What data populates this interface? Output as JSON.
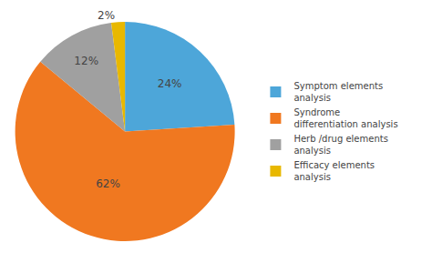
{
  "chart_data": {
    "type": "pie",
    "categories": [
      "Symptom elements\nanalysis",
      "Syndrome\ndifferentiation analysis",
      "Herb /drug elements\nanalysis",
      "Efficacy elements\nanalysis"
    ],
    "values": [
      24,
      62,
      12,
      2
    ],
    "value_labels": [
      "24%",
      "62%",
      "12%",
      "2%"
    ],
    "colors": [
      "#4da6d9",
      "#f07820",
      "#a0a0a0",
      "#e8b800"
    ],
    "data_labels": true,
    "legend": "right"
  }
}
